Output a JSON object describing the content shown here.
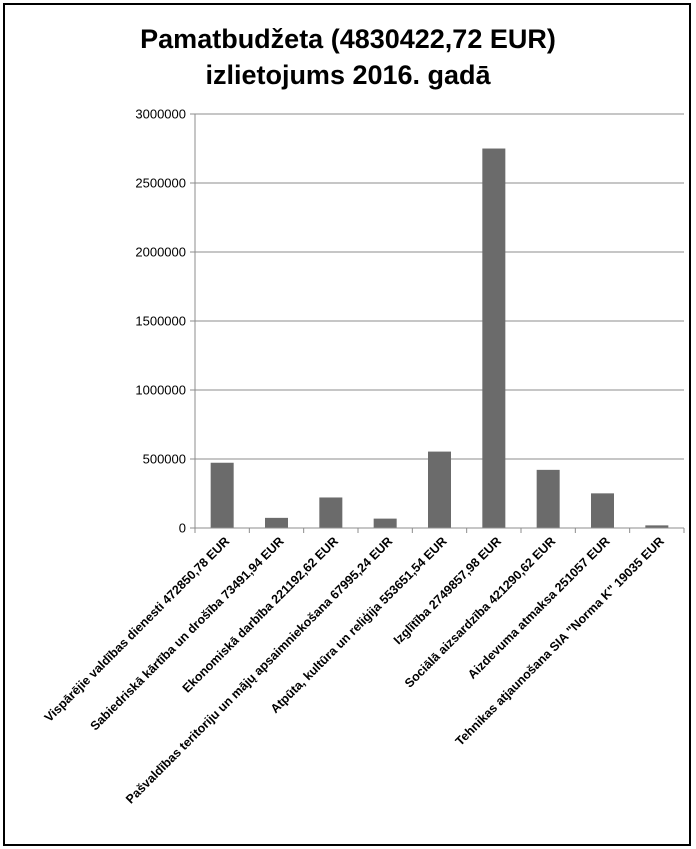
{
  "chart_data": {
    "type": "bar",
    "title_lines": [
      "Pamatbudžeta (4830422,72 EUR)",
      "izlietojums 2016. gadā"
    ],
    "categories": [
      "Vispārējie valdības dienesti 472850,78 EUR",
      "Sabiedriskā kārtība un drošība 73491,94 EUR",
      "Ekonomiskā darbība 221192,62 EUR",
      "Pašvaldības teritoriju un mājų apsaimniekošana 67995,24 EUR",
      "Atpūta, kultūra un reliģija 553651,54 EUR",
      "Izglītība 2749857,98 EUR",
      "Sociālā aizsardzība 421290,62 EUR",
      "Aizdevuma atmaksa 251057 EUR",
      "Tehnikas atjaunošana SIA \"Norma K\" 19035 EUR"
    ],
    "values": [
      472850.78,
      73491.94,
      221192.62,
      67995.24,
      553651.54,
      2749857.98,
      421290.62,
      251057,
      19035
    ],
    "yticks": [
      "0",
      "500000",
      "1000000",
      "1500000",
      "2000000",
      "2500000",
      "3000000"
    ],
    "ylim": [
      0,
      3000000
    ],
    "grid": true,
    "legend": "none",
    "bar_color": "#6b6b6b",
    "grid_color": "#8c8c8c"
  }
}
